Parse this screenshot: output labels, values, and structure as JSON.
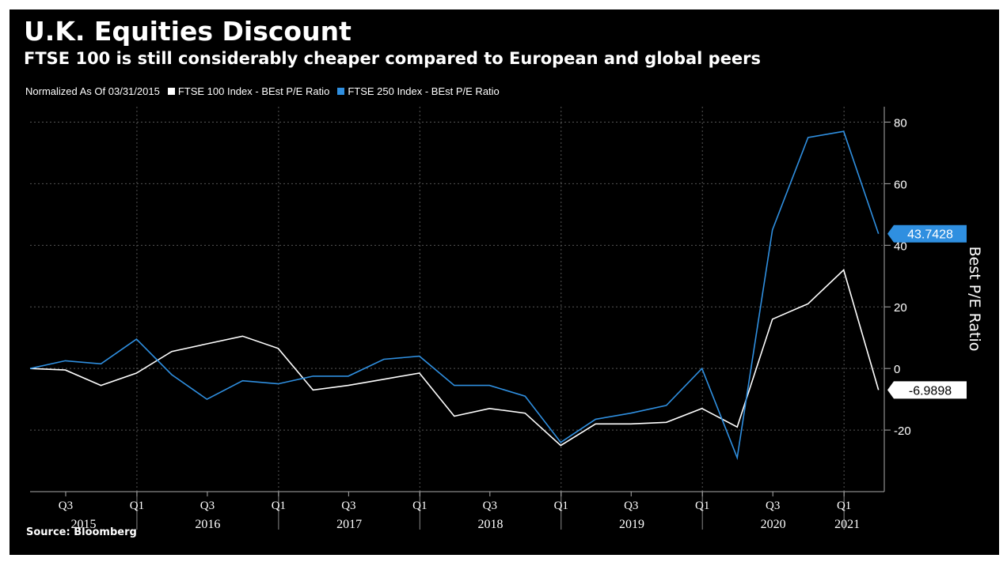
{
  "title": "U.K. Equities Discount",
  "subtitle": "FTSE 100 is still considerably cheaper compared to European and global peers",
  "legend": {
    "note": "Normalized As Of 03/31/2015",
    "items": [
      {
        "label": "FTSE 100 Index - BEst P/E Ratio",
        "color": "#ffffff"
      },
      {
        "label": "FTSE 250 Index - BEst P/E Ratio",
        "color": "#2f8fe0"
      }
    ]
  },
  "source": "Source: Bloomberg",
  "chart_data": {
    "type": "line",
    "ylabel": "Best P/E Ratio",
    "ylim": [
      -40,
      85
    ],
    "yticks": [
      -20,
      0,
      20,
      40,
      60,
      80
    ],
    "y_axis_side": "right",
    "grid": true,
    "x": [
      "2015-03-31",
      "2015-06-30",
      "2015-09-30",
      "2015-12-31",
      "2016-03-31",
      "2016-06-30",
      "2016-09-30",
      "2016-12-31",
      "2017-03-31",
      "2017-06-30",
      "2017-09-30",
      "2017-12-31",
      "2018-03-31",
      "2018-06-30",
      "2018-09-30",
      "2018-12-31",
      "2019-03-31",
      "2019-06-30",
      "2019-09-30",
      "2019-12-31",
      "2020-03-31",
      "2020-06-30",
      "2020-09-30",
      "2020-12-31",
      "2021-03-31"
    ],
    "xticks": [
      {
        "label": "Q3",
        "date": "2015-07-01"
      },
      {
        "label": "Q1",
        "date": "2016-01-01"
      },
      {
        "label": "Q3",
        "date": "2016-07-01"
      },
      {
        "label": "Q1",
        "date": "2017-01-01"
      },
      {
        "label": "Q3",
        "date": "2017-07-01"
      },
      {
        "label": "Q1",
        "date": "2018-01-01"
      },
      {
        "label": "Q3",
        "date": "2018-07-01"
      },
      {
        "label": "Q1",
        "date": "2019-01-01"
      },
      {
        "label": "Q3",
        "date": "2019-07-01"
      },
      {
        "label": "Q1",
        "date": "2020-01-01"
      },
      {
        "label": "Q3",
        "date": "2020-07-01"
      },
      {
        "label": "Q1",
        "date": "2021-01-01"
      }
    ],
    "year_labels": [
      "2015",
      "2016",
      "2017",
      "2018",
      "2019",
      "2020",
      "2021"
    ],
    "series": [
      {
        "name": "FTSE 100 Index - BEst P/E Ratio",
        "color": "#ffffff",
        "last_label": "-6.9898",
        "values": [
          0,
          -0.5,
          -5.5,
          -1.5,
          5.5,
          8,
          10.5,
          6.5,
          -7,
          -5.5,
          -3.5,
          -1.5,
          -15.5,
          -13,
          -14.5,
          -25,
          -18,
          -18,
          -17.5,
          -13,
          -19,
          16,
          21,
          32,
          -6.9898
        ]
      },
      {
        "name": "FTSE 250 Index - BEst P/E Ratio",
        "color": "#2f8fe0",
        "last_label": "43.7428",
        "values": [
          0,
          2.5,
          1.5,
          9.5,
          -2,
          -10,
          -4,
          -5,
          -2.5,
          -2.5,
          3,
          4,
          -5.5,
          -5.5,
          -9,
          -24,
          -16.5,
          -14.5,
          -12,
          0,
          -29,
          45,
          75,
          77,
          43.7428
        ]
      }
    ]
  }
}
